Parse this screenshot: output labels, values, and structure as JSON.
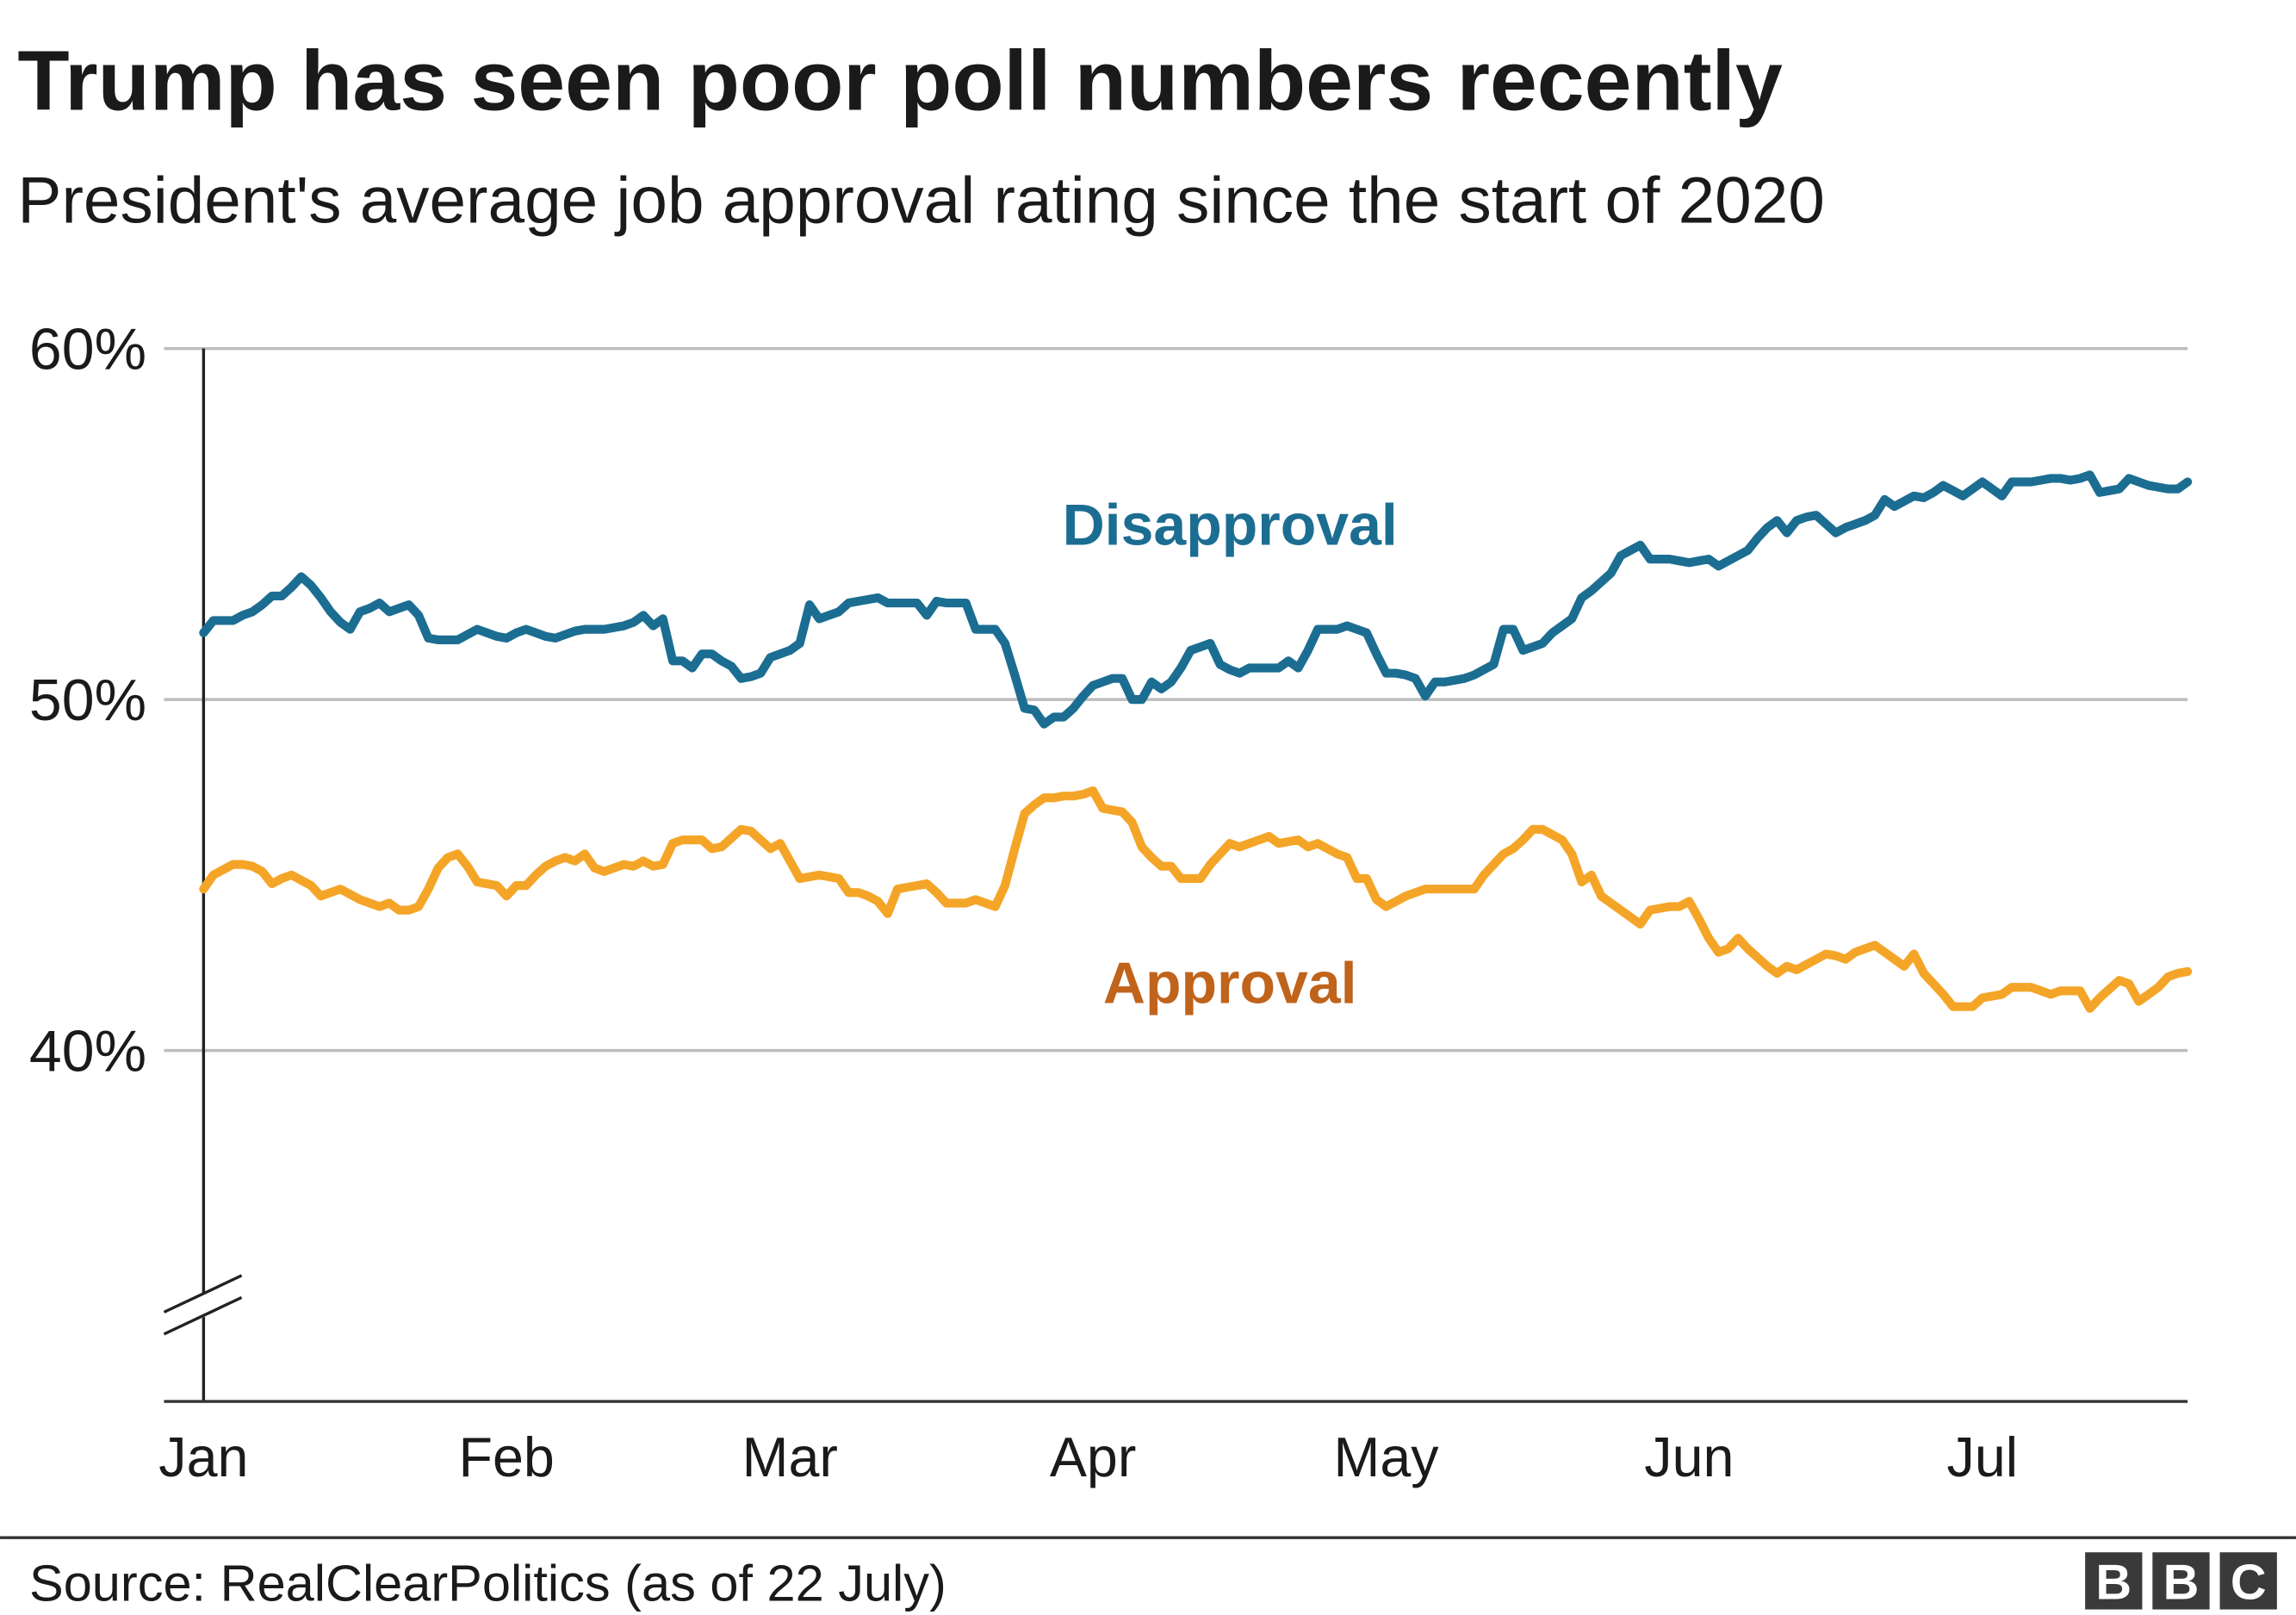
{
  "chart_data": {
    "type": "line",
    "title": "Trump has seen poor poll numbers recently",
    "subtitle": "President's average job approval rating since the start of 2020",
    "source": "Source: RealClearPolitics (as of 22 July)",
    "logo": [
      "B",
      "B",
      "C"
    ],
    "categories": [
      "Jan",
      null,
      null,
      null,
      null,
      null,
      null,
      null,
      null,
      null,
      null,
      null,
      null,
      null,
      null,
      null,
      null,
      null,
      null,
      null,
      null,
      null,
      null,
      null,
      null,
      null,
      null,
      null,
      null,
      null,
      null,
      "Feb",
      null,
      null,
      null,
      null,
      null,
      null,
      null,
      null,
      null,
      null,
      null,
      null,
      null,
      null,
      null,
      null,
      null,
      null,
      null,
      null,
      null,
      null,
      null,
      null,
      null,
      null,
      null,
      null,
      "Mar",
      null,
      null,
      null,
      null,
      null,
      null,
      null,
      null,
      null,
      null,
      null,
      null,
      null,
      null,
      null,
      null,
      null,
      null,
      null,
      null,
      null,
      null,
      null,
      null,
      null,
      null,
      null,
      null,
      null,
      null,
      "Apr",
      null,
      null,
      null,
      null,
      null,
      null,
      null,
      null,
      null,
      null,
      null,
      null,
      null,
      null,
      null,
      null,
      null,
      null,
      null,
      null,
      null,
      null,
      null,
      null,
      null,
      null,
      null,
      null,
      null,
      "May",
      null,
      null,
      null,
      null,
      null,
      null,
      null,
      null,
      null,
      null,
      null,
      null,
      null,
      null,
      null,
      null,
      null,
      null,
      null,
      null,
      null,
      null,
      null,
      null,
      null,
      null,
      null,
      null,
      null,
      null,
      "Jun",
      null,
      null,
      null,
      null,
      null,
      null,
      null,
      null,
      null,
      null,
      null,
      null,
      null,
      null,
      null,
      null,
      null,
      null,
      null,
      null,
      null,
      null,
      null,
      null,
      null,
      null,
      null,
      null,
      null,
      "Jul",
      null,
      null,
      null,
      null,
      null,
      null,
      null,
      null,
      null,
      null,
      null,
      null,
      null,
      null,
      null,
      null,
      null,
      null,
      null,
      null,
      null
    ],
    "series": [
      {
        "name": "Disapproval",
        "color": "#1c6d92",
        "label_color": "#1c6d92",
        "values": [
          51.9,
          52.25,
          52.25,
          52.25,
          52.4,
          52.5,
          52.7,
          52.95,
          52.95,
          53.2,
          53.5,
          53.25,
          52.9,
          52.5,
          52.2,
          52.0,
          52.5,
          52.6,
          52.75,
          52.5,
          52.6,
          52.7,
          52.4,
          51.75,
          51.7,
          51.7,
          51.7,
          51.85,
          52.0,
          51.9,
          51.8,
          51.75,
          51.9,
          52.0,
          51.9,
          51.8,
          51.75,
          51.85,
          51.95,
          52.0,
          52.0,
          52.0,
          52.05,
          52.1,
          52.2,
          52.4,
          52.1,
          52.3,
          51.1,
          51.1,
          50.9,
          51.3,
          51.3,
          51.1,
          50.95,
          50.6,
          50.65,
          50.75,
          51.2,
          51.3,
          51.4,
          51.6,
          52.7,
          52.3,
          52.4,
          52.5,
          52.75,
          52.8,
          52.85,
          52.9,
          52.75,
          52.75,
          52.75,
          52.75,
          52.4,
          52.8,
          52.75,
          52.75,
          52.75,
          52.0,
          52.0,
          52.0,
          51.6,
          50.7,
          49.75,
          49.7,
          49.3,
          49.5,
          49.5,
          49.75,
          50.1,
          50.4,
          50.5,
          50.6,
          50.6,
          50.0,
          50.0,
          50.5,
          50.3,
          50.5,
          50.9,
          51.4,
          51.5,
          51.6,
          51.0,
          50.85,
          50.75,
          50.9,
          50.9,
          50.9,
          50.9,
          51.1,
          50.9,
          51.4,
          52.0,
          52.0,
          52.0,
          52.1,
          52.0,
          51.9,
          51.3,
          50.75,
          50.75,
          50.7,
          50.6,
          50.1,
          50.5,
          50.5,
          50.55,
          50.6,
          50.7,
          50.85,
          51.0,
          52.0,
          52.0,
          51.4,
          51.5,
          51.6,
          51.9,
          52.1,
          52.3,
          52.9,
          53.1,
          53.35,
          53.6,
          54.1,
          54.25,
          54.4,
          54.0,
          54.0,
          54.0,
          53.95,
          53.9,
          53.95,
          54.0,
          53.8,
          53.95,
          54.1,
          54.25,
          54.6,
          54.9,
          55.1,
          54.75,
          55.1,
          55.2,
          55.25,
          55.0,
          54.75,
          54.9,
          55.0,
          55.1,
          55.25,
          55.7,
          55.5,
          55.65,
          55.8,
          55.75,
          55.9,
          56.1,
          55.95,
          55.8,
          56.0,
          56.2,
          56.0,
          55.8,
          56.2,
          56.2,
          56.2,
          56.25,
          56.3,
          56.3,
          56.25,
          56.3,
          56.4,
          55.9,
          55.95,
          56.0,
          56.3,
          56.2,
          56.1,
          56.05,
          56.0,
          56.0,
          56.2
        ]
      },
      {
        "name": "Approval",
        "color": "#f4a528",
        "label_color": "#c0631b",
        "values": [
          44.6,
          45.0,
          45.15,
          45.3,
          45.3,
          45.25,
          45.1,
          44.75,
          44.9,
          45.0,
          44.85,
          44.7,
          44.4,
          44.5,
          44.6,
          44.45,
          44.3,
          44.2,
          44.1,
          44.2,
          44.0,
          44.0,
          44.1,
          44.6,
          45.2,
          45.5,
          45.6,
          45.25,
          44.8,
          44.75,
          44.7,
          44.4,
          44.7,
          44.7,
          45.0,
          45.25,
          45.4,
          45.5,
          45.4,
          45.6,
          45.2,
          45.1,
          45.2,
          45.3,
          45.25,
          45.4,
          45.25,
          45.3,
          45.9,
          46.0,
          46.0,
          46.0,
          45.75,
          45.8,
          46.05,
          46.3,
          46.25,
          46.0,
          45.75,
          45.9,
          45.4,
          44.9,
          44.95,
          45.0,
          44.95,
          44.9,
          44.5,
          44.5,
          44.4,
          44.25,
          43.9,
          44.6,
          44.65,
          44.7,
          44.75,
          44.5,
          44.2,
          44.2,
          44.2,
          44.3,
          44.2,
          44.1,
          44.7,
          45.75,
          46.75,
          47.0,
          47.2,
          47.2,
          47.25,
          47.25,
          47.3,
          47.4,
          46.9,
          46.85,
          46.8,
          46.5,
          45.8,
          45.5,
          45.25,
          45.25,
          44.9,
          44.9,
          44.9,
          45.3,
          45.6,
          45.9,
          45.8,
          45.9,
          46.0,
          46.1,
          45.9,
          45.95,
          46.0,
          45.8,
          45.9,
          45.75,
          45.6,
          45.5,
          44.9,
          44.9,
          44.3,
          44.1,
          44.25,
          44.4,
          44.5,
          44.6,
          44.6,
          44.6,
          44.6,
          44.6,
          44.6,
          45.0,
          45.3,
          45.6,
          45.75,
          46.0,
          46.3,
          46.3,
          46.15,
          46.0,
          45.6,
          44.8,
          45.0,
          44.4,
          44.2,
          44.0,
          43.8,
          43.6,
          44.0,
          44.05,
          44.1,
          44.1,
          44.25,
          43.75,
          43.2,
          42.8,
          42.9,
          43.2,
          42.9,
          42.65,
          42.4,
          42.2,
          42.4,
          42.3,
          42.45,
          42.6,
          42.75,
          42.7,
          42.6,
          42.8,
          42.9,
          43.0,
          42.8,
          42.6,
          42.4,
          42.75,
          42.2,
          41.9,
          41.6,
          41.25,
          41.25,
          41.25,
          41.5,
          41.55,
          41.6,
          41.8,
          41.8,
          41.8,
          41.7,
          41.6,
          41.7,
          41.7,
          41.7,
          41.2,
          41.5,
          41.75,
          42.0,
          41.9,
          41.4,
          41.6,
          41.8,
          42.1,
          42.2,
          42.25
        ]
      }
    ],
    "ylim": [
      30,
      60
    ],
    "yticks": [
      {
        "value": 40,
        "label": "40%"
      },
      {
        "value": 50,
        "label": "50%"
      },
      {
        "value": 60,
        "label": "60%"
      }
    ],
    "grid": true,
    "axis_break": true
  }
}
